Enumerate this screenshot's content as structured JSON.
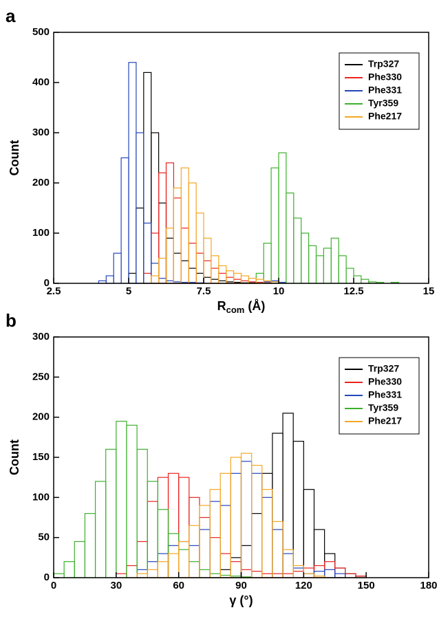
{
  "chart_data": [
    {
      "type": "histogram",
      "panel_label": "a",
      "xlabel": {
        "main": "R",
        "sub": "com",
        "unit": "(Å)"
      },
      "ylabel": "Count",
      "xlim": [
        2.5,
        15
      ],
      "ylim": [
        0,
        500
      ],
      "xticks": [
        2.5,
        5,
        7.5,
        10,
        12.5,
        15
      ],
      "yticks": [
        0,
        100,
        200,
        300,
        400,
        500
      ],
      "legend": "upper-right",
      "bins": [
        4,
        4.25,
        4.5,
        4.75,
        5,
        5.25,
        5.5,
        5.75,
        6,
        6.25,
        6.5,
        6.75,
        7,
        7.25,
        7.5,
        7.75,
        8,
        8.25,
        8.5,
        8.75,
        9,
        9.25,
        9.5,
        9.75,
        10,
        10.25,
        10.5,
        10.75,
        11,
        11.25,
        11.5,
        11.75,
        12,
        12.25,
        12.5,
        12.75,
        13,
        13.25,
        13.5,
        13.75,
        14
      ],
      "series": [
        {
          "name": "Trp327",
          "color": "#000000",
          "values": [
            0,
            0,
            0,
            0,
            20,
            150,
            420,
            300,
            160,
            90,
            60,
            45,
            30,
            20,
            12,
            8,
            5,
            3,
            2,
            1,
            1,
            0,
            0,
            0,
            0,
            0,
            0,
            0,
            0,
            0,
            0,
            0,
            0,
            0,
            0,
            0,
            0,
            0,
            0,
            0
          ]
        },
        {
          "name": "Phe330",
          "color": "#e8231f",
          "values": [
            0,
            0,
            0,
            0,
            0,
            0,
            20,
            100,
            220,
            240,
            170,
            110,
            80,
            60,
            45,
            30,
            20,
            12,
            8,
            5,
            3,
            2,
            1,
            0,
            0,
            0,
            0,
            0,
            0,
            0,
            0,
            0,
            0,
            0,
            0,
            0,
            0,
            0,
            0,
            0
          ]
        },
        {
          "name": "Phe331",
          "color": "#2346b8",
          "values": [
            5,
            15,
            60,
            250,
            440,
            300,
            120,
            40,
            10,
            5,
            3,
            2,
            2,
            1,
            0,
            0,
            0,
            0,
            0,
            0,
            0,
            0,
            3,
            5,
            2,
            0,
            0,
            0,
            0,
            0,
            0,
            0,
            0,
            0,
            0,
            0,
            0,
            0,
            0,
            0
          ]
        },
        {
          "name": "Tyr359",
          "color": "#3cb02c",
          "values": [
            0,
            0,
            0,
            0,
            0,
            0,
            0,
            0,
            0,
            0,
            0,
            0,
            0,
            0,
            0,
            0,
            0,
            0,
            0,
            0,
            0,
            20,
            80,
            230,
            260,
            180,
            130,
            100,
            75,
            55,
            70,
            90,
            55,
            30,
            15,
            8,
            3,
            2,
            0,
            2
          ]
        },
        {
          "name": "Phe217",
          "color": "#f5a623",
          "values": [
            0,
            0,
            0,
            0,
            0,
            0,
            0,
            15,
            50,
            110,
            190,
            230,
            200,
            140,
            90,
            55,
            35,
            25,
            20,
            15,
            10,
            8,
            5,
            3,
            0,
            0,
            0,
            0,
            0,
            0,
            0,
            0,
            0,
            0,
            0,
            0,
            0,
            0,
            0,
            0
          ]
        }
      ]
    },
    {
      "type": "histogram",
      "panel_label": "b",
      "xlabel": {
        "main": "γ",
        "unit": "(°)"
      },
      "ylabel": "Count",
      "xlim": [
        0,
        180
      ],
      "ylim": [
        0,
        300
      ],
      "xticks": [
        0,
        30,
        60,
        90,
        120,
        150,
        180
      ],
      "yticks": [
        0,
        50,
        100,
        150,
        200,
        250,
        300
      ],
      "legend": "upper-right",
      "bins": [
        0,
        5,
        10,
        15,
        20,
        25,
        30,
        35,
        40,
        45,
        50,
        55,
        60,
        65,
        70,
        75,
        80,
        85,
        90,
        95,
        100,
        105,
        110,
        115,
        120,
        125,
        130,
        135,
        140,
        145,
        150
      ],
      "series": [
        {
          "name": "Trp327",
          "color": "#000000",
          "values": [
            0,
            0,
            0,
            0,
            0,
            0,
            0,
            0,
            0,
            0,
            0,
            0,
            0,
            0,
            0,
            0,
            10,
            25,
            40,
            80,
            130,
            180,
            205,
            170,
            110,
            60,
            30,
            12,
            5,
            2
          ]
        },
        {
          "name": "Phe330",
          "color": "#e8231f",
          "values": [
            0,
            0,
            0,
            0,
            0,
            0,
            5,
            15,
            45,
            95,
            125,
            130,
            125,
            100,
            75,
            50,
            30,
            20,
            10,
            8,
            5,
            5,
            5,
            8,
            12,
            15,
            20,
            12,
            5,
            2
          ]
        },
        {
          "name": "Phe331",
          "color": "#2346b8",
          "values": [
            0,
            0,
            0,
            0,
            0,
            0,
            0,
            0,
            10,
            20,
            30,
            40,
            45,
            40,
            60,
            95,
            90,
            130,
            145,
            130,
            100,
            60,
            30,
            12,
            5,
            8,
            10,
            5,
            0,
            0
          ]
        },
        {
          "name": "Tyr359",
          "color": "#3cb02c",
          "values": [
            5,
            20,
            45,
            80,
            120,
            160,
            195,
            190,
            160,
            120,
            85,
            55,
            35,
            20,
            10,
            5,
            3,
            2,
            1,
            0,
            0,
            0,
            0,
            0,
            0,
            0,
            0,
            0,
            0,
            0
          ]
        },
        {
          "name": "Phe217",
          "color": "#f5a623",
          "values": [
            0,
            0,
            0,
            0,
            0,
            0,
            0,
            0,
            5,
            10,
            20,
            30,
            45,
            65,
            90,
            110,
            130,
            150,
            155,
            140,
            110,
            70,
            35,
            15,
            5,
            2,
            0,
            0,
            0,
            0
          ]
        }
      ]
    }
  ]
}
